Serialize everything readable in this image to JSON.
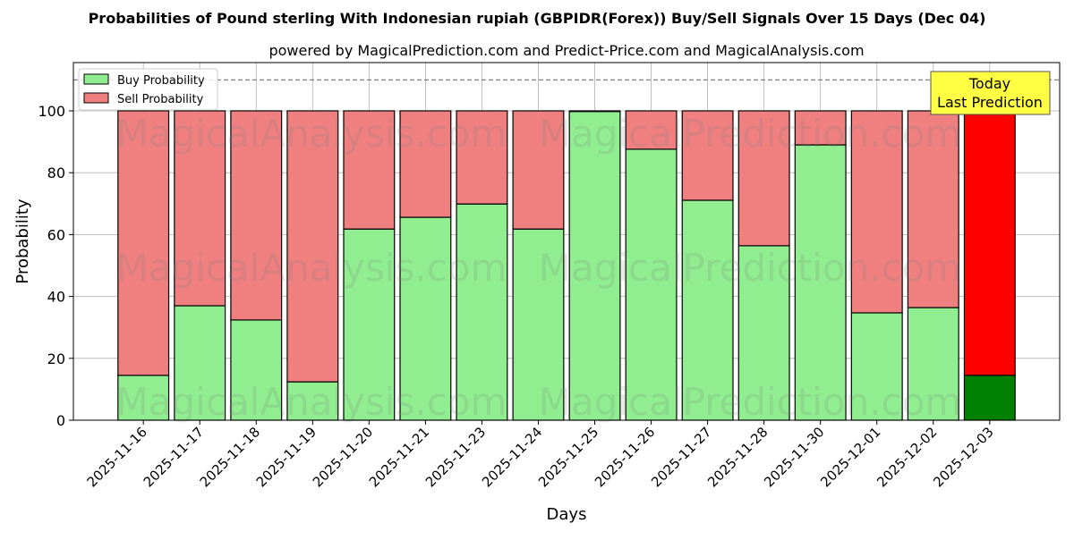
{
  "chart_data": {
    "type": "bar",
    "stacked": true,
    "title": "Probabilities of Pound sterling With Indonesian rupiah (GBPIDR(Forex)) Buy/Sell Signals Over 15 Days (Dec 04)",
    "subtitle": "powered by MagicalPrediction.com and Predict-Price.com and MagicalAnalysis.com",
    "xlabel": "Days",
    "ylabel": "Probability",
    "ylim": [
      0,
      115.6
    ],
    "yticks": [
      0,
      20,
      40,
      60,
      80,
      100
    ],
    "grid": true,
    "reference_line": 110,
    "legend_position": "top-left",
    "categories": [
      "2025-11-16",
      "2025-11-17",
      "2025-11-18",
      "2025-11-19",
      "2025-11-20",
      "2025-11-21",
      "2025-11-23",
      "2025-11-24",
      "2025-11-25",
      "2025-11-26",
      "2025-11-27",
      "2025-11-28",
      "2025-11-30",
      "2025-12-01",
      "2025-12-02",
      "2025-12-03"
    ],
    "series": [
      {
        "name": "Buy Probability",
        "color": "#90ee90",
        "values": [
          14.5,
          37.0,
          32.4,
          12.4,
          61.8,
          65.6,
          69.9,
          61.8,
          99.8,
          87.6,
          71.1,
          56.4,
          89.0,
          34.7,
          36.4,
          14.5
        ]
      },
      {
        "name": "Sell Probability",
        "color": "#f08080",
        "values": [
          85.5,
          63.0,
          67.6,
          87.6,
          38.2,
          34.4,
          30.1,
          38.2,
          0.2,
          12.4,
          28.9,
          43.6,
          11.0,
          65.3,
          63.6,
          85.5
        ]
      }
    ],
    "highlight": {
      "index": 15,
      "buy_color": "#008000",
      "sell_color": "#ff0000"
    },
    "annotation": {
      "line1": "Today",
      "line2": "Last Prediction",
      "color": "#ffff44"
    },
    "watermarks": [
      "MagicalAnalysis.com",
      "MagicalPrediction.com"
    ]
  }
}
